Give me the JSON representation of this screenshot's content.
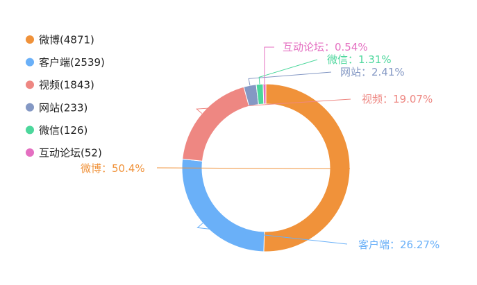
{
  "chart_data": {
    "type": "pie",
    "donut": true,
    "legend_position": "left",
    "series": [
      {
        "name": "微博",
        "value": 4871,
        "percent_label": "50.4%",
        "color": "#F0923A"
      },
      {
        "name": "客户端",
        "value": 2539,
        "percent_label": "26.27%",
        "color": "#6AB0F8"
      },
      {
        "name": "视频",
        "value": 1843,
        "percent_label": "19.07%",
        "color": "#EE8782"
      },
      {
        "name": "网站",
        "value": 233,
        "percent_label": "2.41%",
        "color": "#8498C4"
      },
      {
        "name": "微信",
        "value": 126,
        "percent_label": "1.31%",
        "color": "#4CD79C"
      },
      {
        "name": "互动论坛",
        "value": 52,
        "percent_label": "0.54%",
        "color": "#E46FC1"
      }
    ]
  }
}
